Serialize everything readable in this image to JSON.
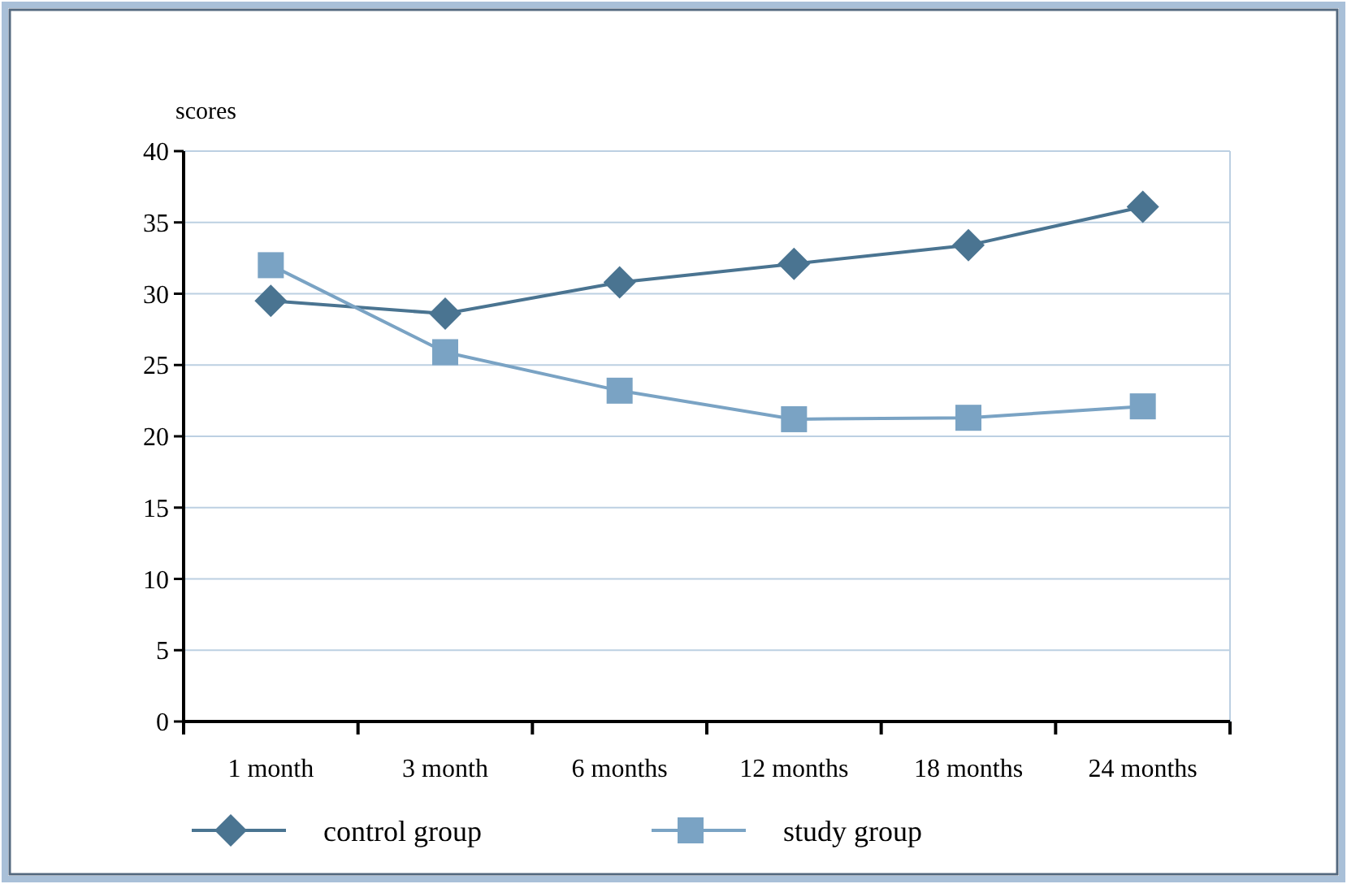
{
  "chart_data": {
    "type": "line",
    "ylabel": "scores",
    "categories": [
      "1 month",
      "3 month",
      "6 months",
      "12 months",
      "18 months",
      "24 months"
    ],
    "series": [
      {
        "name": "control group",
        "color": "#4a7491",
        "marker": "diamond",
        "values": [
          29.5,
          28.6,
          30.8,
          32.1,
          33.4,
          36.1
        ]
      },
      {
        "name": "study group",
        "color": "#7aa3c4",
        "marker": "square",
        "values": [
          32.0,
          25.9,
          23.2,
          21.2,
          21.3,
          22.1
        ]
      }
    ],
    "ylim": [
      0,
      40
    ],
    "yticks": [
      0,
      5,
      10,
      15,
      20,
      25,
      30,
      35,
      40
    ],
    "grid": "y",
    "legend": "bottom",
    "line_style": "solid"
  }
}
